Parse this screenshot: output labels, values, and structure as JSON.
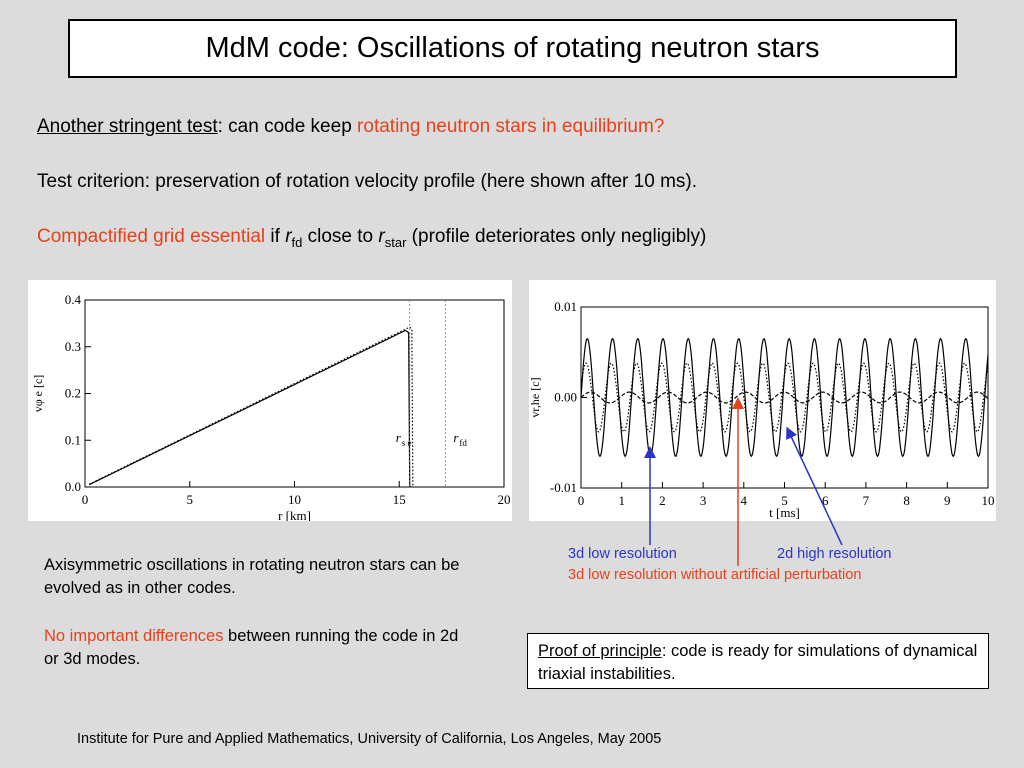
{
  "title": "MdM code: Oscillations of rotating neutron stars",
  "intro": {
    "line1": {
      "underlined": "Another stringent test",
      "middle": ": can code keep ",
      "highlight": "rotating neutron stars in equilibrium?"
    },
    "line2": "Test criterion: preservation of rotation velocity profile (here shown after 10 ms).",
    "line3": {
      "highlight": "Compactified grid essential",
      "t1": " if ",
      "r1": "r",
      "r1_sub": "fd",
      "t2": " close to ",
      "r2": "r",
      "r2_sub": "star",
      "t3": " (profile deteriorates only negligibly)"
    }
  },
  "chart_data": [
    {
      "type": "line",
      "xlabel": "r [km]",
      "ylabel": "vφ e [c]",
      "xlim": [
        0,
        20
      ],
      "ylim": [
        0,
        0.4
      ],
      "xticks": [
        "0",
        "5",
        "10",
        "15",
        "20"
      ],
      "yticks": [
        "0.0",
        "0.1",
        "0.2",
        "0.3",
        "0.4"
      ],
      "series": [
        {
          "style": "solid",
          "x": [
            0.2,
            15.3,
            15.45,
            15.5
          ],
          "y": [
            0.005,
            0.335,
            0.33,
            0.0
          ]
        },
        {
          "style": "dotted",
          "x": [
            0.2,
            15.5,
            15.6,
            15.65
          ],
          "y": [
            0.006,
            0.342,
            0.338,
            0.0
          ]
        }
      ],
      "annotations": [
        {
          "text": "r",
          "sub": "s e",
          "x": 15.5
        },
        {
          "text": "r",
          "sub": "fd",
          "x": 17.2
        }
      ]
    },
    {
      "type": "line",
      "xlabel": "t [ms]",
      "ylabel": "vr,he [c]",
      "xlim": [
        0,
        10
      ],
      "ylim": [
        -0.01,
        0.01
      ],
      "xticks": [
        "0",
        "1",
        "2",
        "3",
        "4",
        "5",
        "6",
        "7",
        "8",
        "9",
        "10"
      ],
      "yticks": [
        "-0.01",
        "0.00",
        "0.01"
      ],
      "series": [
        {
          "style": "solid",
          "period": 0.62,
          "amplitude": 0.0065,
          "phase": 0.0
        },
        {
          "style": "dotted",
          "period": 0.62,
          "amplitude": 0.0038,
          "phase": 0.3
        },
        {
          "style": "dashed",
          "period": 0.95,
          "amplitude": 0.0006,
          "phase": 0.0
        }
      ]
    }
  ],
  "legend": {
    "label1": "3d low resolution",
    "label2": "2d high resolution",
    "label3": "3d low resolution without artificial perturbation",
    "blue": "#2a35c8",
    "red": "#e8401a"
  },
  "caption_left": {
    "p1": "Axisymmetric oscillations in rotating neutron stars can be evolved as in other codes.",
    "p2_highlight": "No important differences",
    "p2_rest": " between running the code in 2d or 3d modes."
  },
  "proof": {
    "underlined": "Proof of principle",
    "rest": ": code is ready for simulations of dynamical triaxial instabilities."
  },
  "footer": "Institute for Pure and Applied Mathematics, University of California, Los Angeles, May 2005"
}
